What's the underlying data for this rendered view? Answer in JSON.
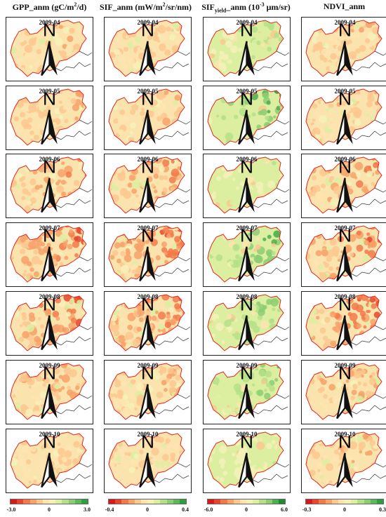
{
  "columns": [
    {
      "key": "gpp",
      "title": "GPP_anm (gC/m²/d)",
      "ticks": [
        "-3.0",
        "0",
        "3.0"
      ],
      "palette": [
        "#d7191c",
        "#e8452e",
        "#f2794a",
        "#f7a26a",
        "#fbc88f",
        "#fde4b0",
        "#f4f1b8",
        "#dcefa0",
        "#b5e08a",
        "#8ccd74",
        "#5db85c",
        "#2e9e3f"
      ],
      "intensity": [
        0.25,
        0.3,
        0.55,
        0.75,
        0.8,
        0.45,
        0.2
      ]
    },
    {
      "key": "sif",
      "title": "SIF_anm (mW/m²/sr/nm)",
      "ticks": [
        "-0.4",
        "0",
        "0.4"
      ],
      "palette": [
        "#d7191c",
        "#e8452e",
        "#f2794a",
        "#f7a26a",
        "#fbc88f",
        "#fde4b0",
        "#f4f1b8",
        "#dcefa0",
        "#b5e08a",
        "#8ccd74",
        "#5db85c",
        "#2e9e3f"
      ],
      "intensity": [
        0.2,
        0.25,
        0.5,
        0.8,
        0.75,
        0.35,
        0.2
      ]
    },
    {
      "key": "sify",
      "title": "SIFyield_anm (10⁻³ μm/sr)",
      "ticks": [
        "-6.0",
        "0",
        "6.0"
      ],
      "palette": [
        "#d7191c",
        "#e8452e",
        "#f2794a",
        "#f7a26a",
        "#fbc88f",
        "#fde4b0",
        "#f4f1b8",
        "#dcefa0",
        "#b5e08a",
        "#8ccd74",
        "#4fae4f",
        "#1f8a32"
      ],
      "intensity": [
        -0.4,
        -0.9,
        -0.3,
        -0.8,
        -0.6,
        -0.7,
        -0.2
      ]
    },
    {
      "key": "ndvi",
      "title": "NDVI_anm",
      "ticks": [
        "-0.3",
        "0",
        "0.3"
      ],
      "palette": [
        "#d7191c",
        "#e8452e",
        "#f2794a",
        "#f7a26a",
        "#fbc88f",
        "#fde4b0",
        "#f4f1b8",
        "#dcefa0",
        "#b5e08a",
        "#8ccd74",
        "#5db85c",
        "#2e9e3f"
      ],
      "intensity": [
        0.25,
        0.3,
        0.6,
        0.75,
        0.85,
        0.35,
        0.3
      ]
    }
  ],
  "dates": [
    "2009-04",
    "2009-05",
    "2009-06",
    "2009-07",
    "2009-08",
    "2009-09",
    "2009-10"
  ],
  "north_label": "N",
  "colors": {
    "boundary": "#e3241b",
    "neighbor": "#333333",
    "frame": "#222222"
  }
}
